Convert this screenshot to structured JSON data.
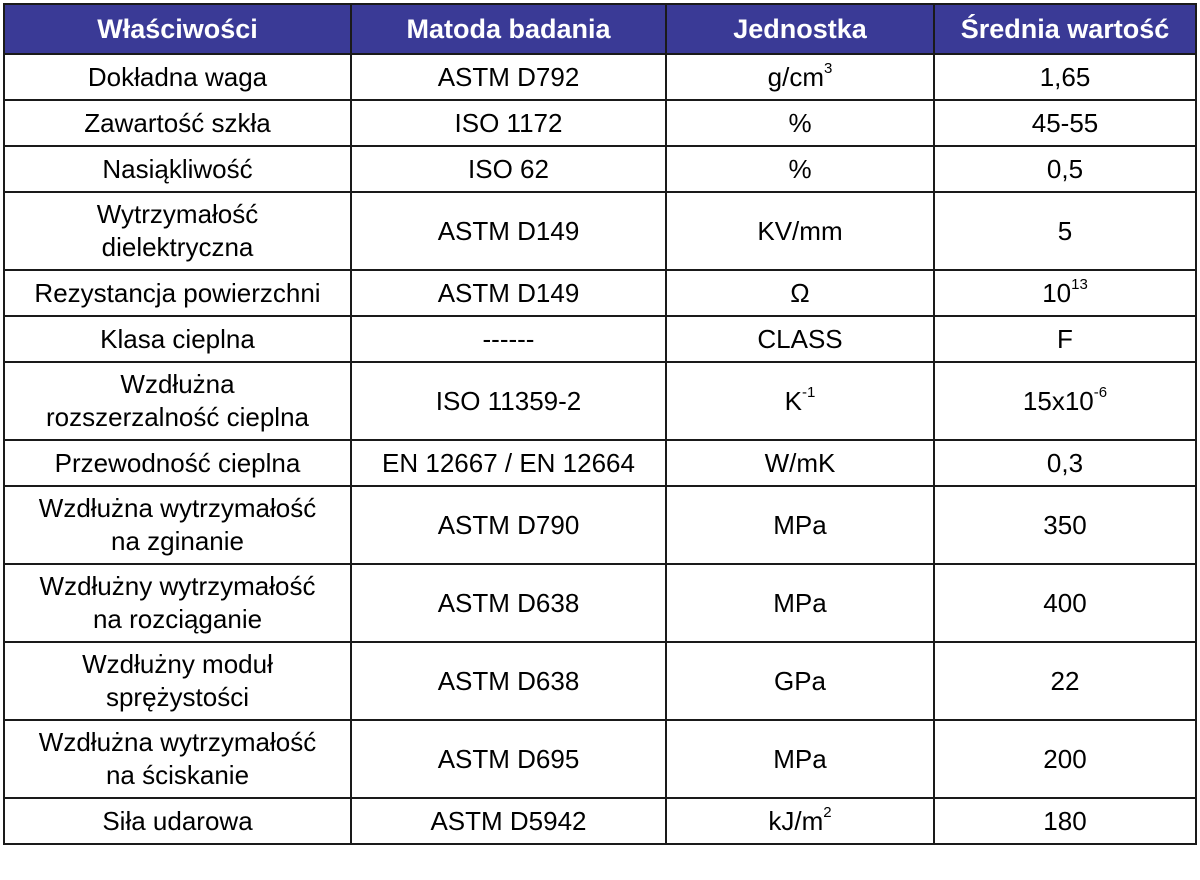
{
  "table": {
    "headers": [
      "Właściwości",
      "Matoda badania",
      "Jednostka",
      "Średnia wartość"
    ],
    "rows": [
      {
        "property": "Dokładna waga",
        "method": "ASTM D792",
        "unit": "g/cm",
        "unit_sup": "3",
        "value": "1,65",
        "value_sup": ""
      },
      {
        "property": "Zawartość szkła",
        "method": "ISO 1172",
        "unit": "%",
        "unit_sup": "",
        "value": "45-55",
        "value_sup": ""
      },
      {
        "property": "Nasiąkliwość",
        "method": "ISO 62",
        "unit": "%",
        "unit_sup": "",
        "value": "0,5",
        "value_sup": ""
      },
      {
        "property": "Wytrzymałość\ndielektryczna",
        "method": "ASTM D149",
        "unit": "KV/mm",
        "unit_sup": "",
        "value": "5",
        "value_sup": ""
      },
      {
        "property": "Rezystancja powierzchni",
        "method": "ASTM D149",
        "unit": "Ω",
        "unit_sup": "",
        "value": "10",
        "value_sup": "13"
      },
      {
        "property": "Klasa cieplna",
        "method": "------",
        "unit": "CLASS",
        "unit_sup": "",
        "value": "F",
        "value_sup": ""
      },
      {
        "property": "Wzdłużna\nrozszerzalność cieplna",
        "method": "ISO 11359-2",
        "unit": "K",
        "unit_sup": "-1",
        "value": "15x10",
        "value_sup": "-6"
      },
      {
        "property": "Przewodność cieplna",
        "method": "EN 12667 / EN 12664",
        "unit": "W/mK",
        "unit_sup": "",
        "value": "0,3",
        "value_sup": ""
      },
      {
        "property": "Wzdłużna wytrzymałość\nna zginanie",
        "method": "ASTM D790",
        "unit": "MPa",
        "unit_sup": "",
        "value": "350",
        "value_sup": ""
      },
      {
        "property": "Wzdłużny wytrzymałość\nna rozciąganie",
        "method": "ASTM D638",
        "unit": "MPa",
        "unit_sup": "",
        "value": "400",
        "value_sup": ""
      },
      {
        "property": "Wzdłużny moduł\nsprężystości",
        "method": "ASTM D638",
        "unit": "GPa",
        "unit_sup": "",
        "value": "22",
        "value_sup": ""
      },
      {
        "property": "Wzdłużna wytrzymałość\nna ściskanie",
        "method": "ASTM D695",
        "unit": "MPa",
        "unit_sup": "",
        "value": "200",
        "value_sup": ""
      },
      {
        "property": "Siła udarowa",
        "method": "ASTM D5942",
        "unit": "kJ/m",
        "unit_sup": "2",
        "value": "180",
        "value_sup": ""
      }
    ]
  },
  "colors": {
    "header_background": "#3a3a96",
    "header_text": "#ffffff",
    "border": "#1a1a1a"
  }
}
